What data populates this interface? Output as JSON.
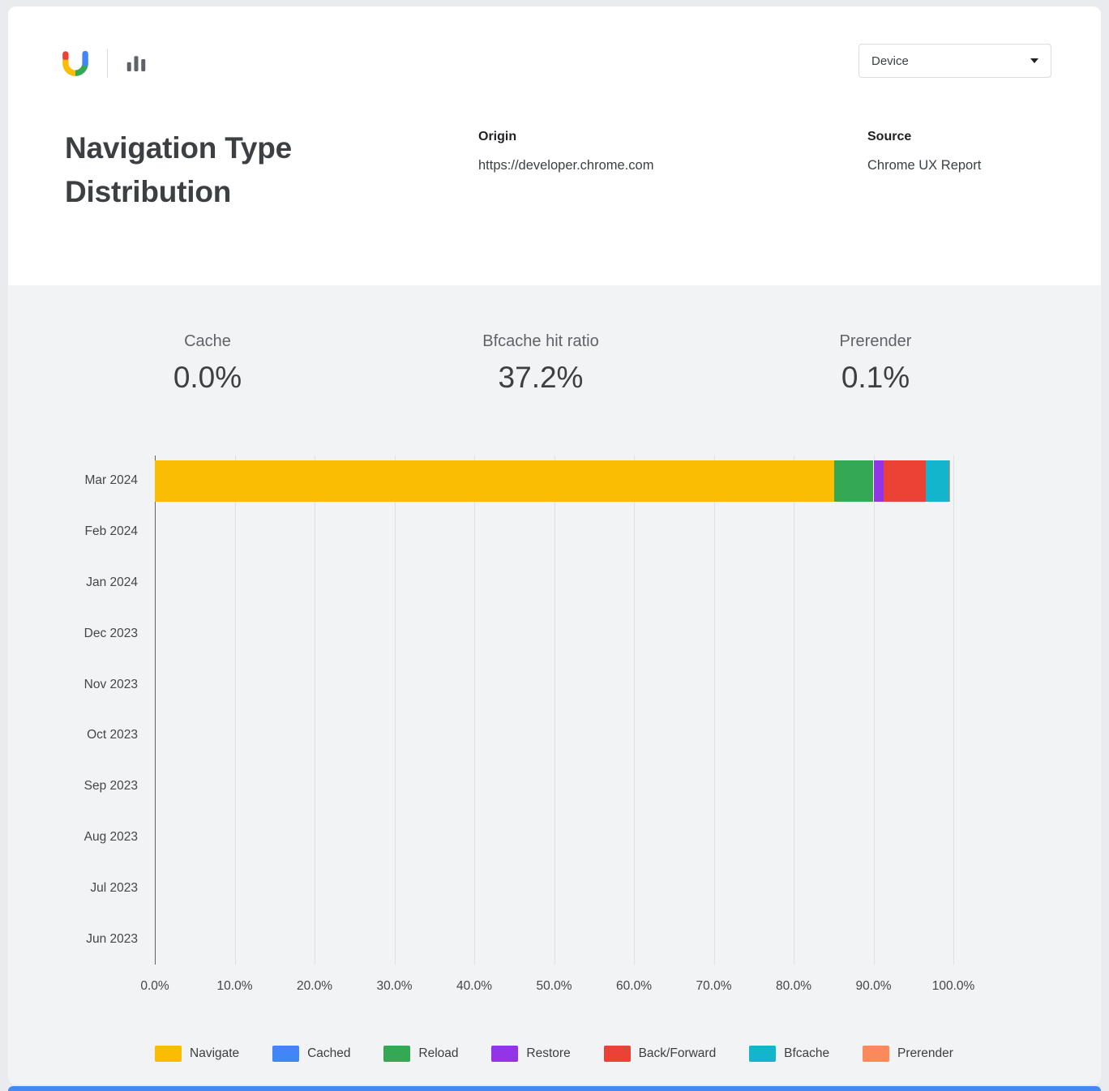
{
  "header": {
    "title": "Navigation Type Distribution",
    "device_selector": {
      "value": "Device"
    },
    "origin_label": "Origin",
    "origin_value": "https://developer.chrome.com",
    "source_label": "Source",
    "source_value": "Chrome UX Report"
  },
  "stats": [
    {
      "label": "Cache",
      "value": "0.0%"
    },
    {
      "label": "Bfcache hit ratio",
      "value": "37.2%"
    },
    {
      "label": "Prerender",
      "value": "0.1%"
    }
  ],
  "chart_data": {
    "type": "bar",
    "orientation": "horizontal",
    "stacked": true,
    "unit": "%",
    "xlim": [
      0,
      100
    ],
    "grid": true,
    "legend_position": "bottom",
    "categories": [
      "Mar 2024",
      "Feb 2024",
      "Jan 2024",
      "Dec 2023",
      "Nov 2023",
      "Oct 2023",
      "Sep 2023",
      "Aug 2023",
      "Jul 2023",
      "Jun 2023"
    ],
    "x_ticks": [
      "0.0%",
      "10.0%",
      "20.0%",
      "30.0%",
      "40.0%",
      "50.0%",
      "60.0%",
      "70.0%",
      "80.0%",
      "90.0%",
      "100.0%"
    ],
    "series": [
      {
        "name": "Navigate",
        "color": "#FBBC04",
        "values": [
          85.1,
          0,
          0,
          0,
          0,
          0,
          0,
          0,
          0,
          0
        ]
      },
      {
        "name": "Cached",
        "color": "#4285F4",
        "values": [
          0,
          0,
          0,
          0,
          0,
          0,
          0,
          0,
          0,
          0
        ]
      },
      {
        "name": "Reload",
        "color": "#34A853",
        "values": [
          4.9,
          0,
          0,
          0,
          0,
          0,
          0,
          0,
          0,
          0
        ]
      },
      {
        "name": "Restore",
        "color": "#9334E6",
        "values": [
          1.3,
          0,
          0,
          0,
          0,
          0,
          0,
          0,
          0,
          0
        ]
      },
      {
        "name": "Back/Forward",
        "color": "#EA4335",
        "values": [
          5.2,
          0,
          0,
          0,
          0,
          0,
          0,
          0,
          0,
          0
        ]
      },
      {
        "name": "Bfcache",
        "color": "#12B5CB",
        "values": [
          3.0,
          0,
          0,
          0,
          0,
          0,
          0,
          0,
          0,
          0
        ]
      },
      {
        "name": "Prerender",
        "color": "#FA8A5C",
        "values": [
          0.1,
          0,
          0,
          0,
          0,
          0,
          0,
          0,
          0,
          0
        ]
      }
    ]
  }
}
